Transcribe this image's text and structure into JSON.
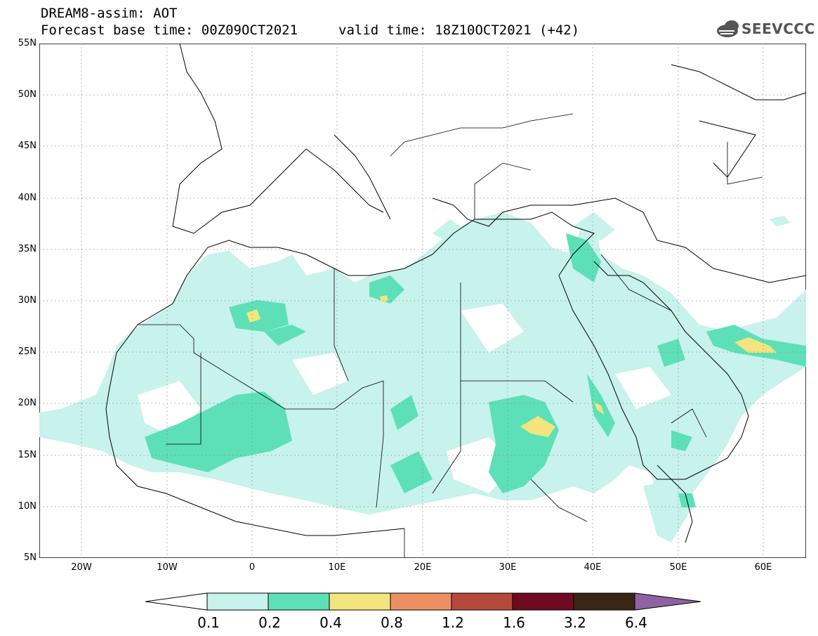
{
  "header": {
    "line1": "DREAM8-assim: AOT",
    "line2": "Forecast base time: 00Z09OCT2021",
    "valid": "valid time: 18Z10OCT2021 (+42)"
  },
  "logo": {
    "text": "SEEVCCC",
    "icon": "cloud-icon"
  },
  "axes": {
    "lat_labels": [
      "55N",
      "50N",
      "45N",
      "40N",
      "35N",
      "30N",
      "25N",
      "20N",
      "15N",
      "10N",
      "5N"
    ],
    "lon_labels": [
      "20W",
      "10W",
      "0",
      "10E",
      "20E",
      "30E",
      "40E",
      "50E",
      "60E"
    ],
    "lat_range": [
      5,
      55
    ],
    "lon_range": [
      -25,
      65
    ]
  },
  "colorbar": {
    "levels": [
      "0.1",
      "0.2",
      "0.4",
      "0.8",
      "1.2",
      "1.6",
      "3.2",
      "6.4"
    ],
    "colors": [
      "#ffffff",
      "#c8f2ec",
      "#5de0b8",
      "#f3e57d",
      "#ec9062",
      "#b54a3c",
      "#6e0a22",
      "#3a2615",
      "#8f63a3"
    ]
  },
  "aot_colors": {
    "low": "#c8f2ec",
    "mid": "#5de0b8",
    "high": "#f3e57d"
  }
}
